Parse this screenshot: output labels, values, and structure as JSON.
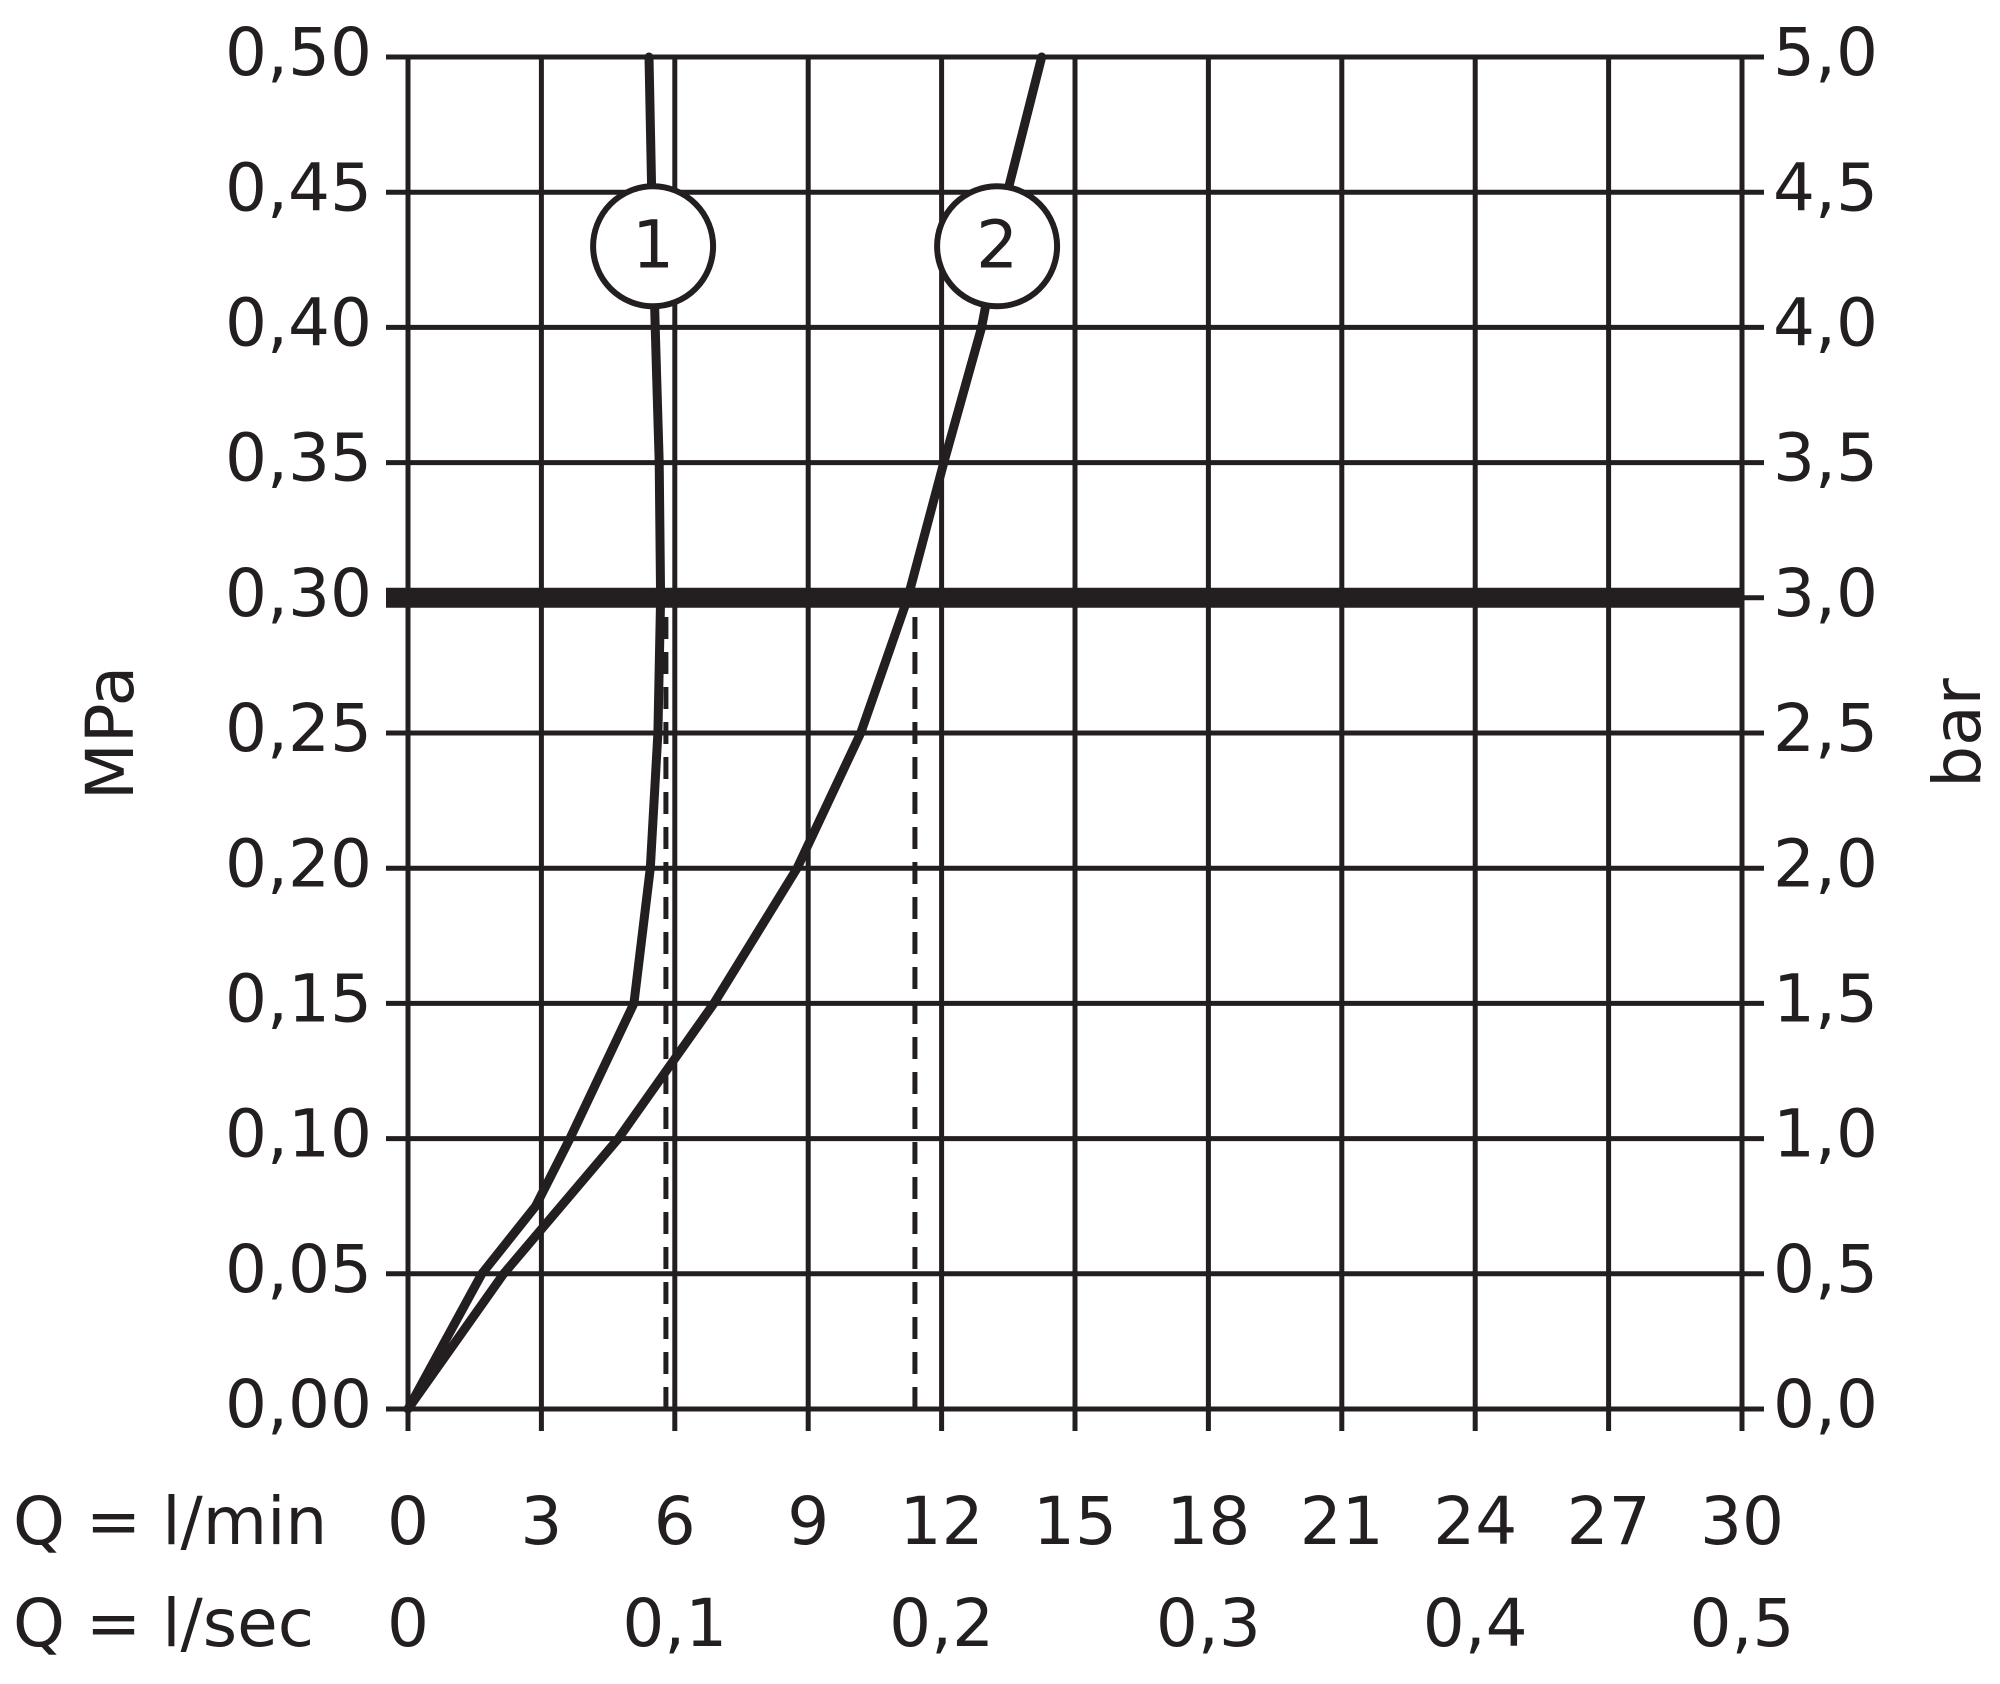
{
  "chart_data": {
    "type": "line",
    "x_label": "Q = l/min",
    "x2_label": "Q = l/sec",
    "y_label": "MPa",
    "y2_label": "bar",
    "xlim": [
      0,
      30
    ],
    "xticks": [
      0,
      3,
      6,
      9,
      12,
      15,
      18,
      21,
      24,
      27,
      30
    ],
    "x2lim": [
      0,
      0.5
    ],
    "x2ticks": [
      0,
      {
        "value": 0.1,
        "label": "0,1"
      },
      {
        "value": 0.2,
        "label": "0,2"
      },
      {
        "value": 0.3,
        "label": "0,3"
      },
      {
        "value": 0.4,
        "label": "0,4"
      },
      {
        "value": 0.5,
        "label": "0,5"
      }
    ],
    "ylim": [
      0,
      0.5
    ],
    "yticks": [
      {
        "value": 0,
        "label": "0,00"
      },
      {
        "value": 0.05,
        "label": "0,05"
      },
      {
        "value": 0.1,
        "label": "0,10"
      },
      {
        "value": 0.15,
        "label": "0,15"
      },
      {
        "value": 0.2,
        "label": "0,20"
      },
      {
        "value": 0.25,
        "label": "0,25"
      },
      {
        "value": 0.3,
        "label": "0,30"
      },
      {
        "value": 0.35,
        "label": "0,35"
      },
      {
        "value": 0.4,
        "label": "0,40"
      },
      {
        "value": 0.45,
        "label": "0,45"
      },
      {
        "value": 0.5,
        "label": "0,50"
      }
    ],
    "y2lim": [
      0,
      5
    ],
    "y2ticks": [
      {
        "value": 0,
        "label": "0,0"
      },
      {
        "value": 0.5,
        "label": "0,5"
      },
      {
        "value": 1,
        "label": "1,0"
      },
      {
        "value": 1.5,
        "label": "1,5"
      },
      {
        "value": 2,
        "label": "2,0"
      },
      {
        "value": 2.5,
        "label": "2,5"
      },
      {
        "value": 3,
        "label": "3,0"
      },
      {
        "value": 3.5,
        "label": "3,5"
      },
      {
        "value": 4,
        "label": "4,0"
      },
      {
        "value": 4.5,
        "label": "4,5"
      },
      {
        "value": 5,
        "label": "5,0"
      }
    ],
    "grid": true,
    "hline": 0.3,
    "drop_lines": [
      {
        "x": 5.8,
        "y": 0.3
      },
      {
        "x": 11.4,
        "y": 0.3
      }
    ],
    "series": [
      {
        "name": "1",
        "color": "#231f20",
        "x": [
          0,
          1.66,
          2.87,
          3.64,
          5.08,
          5.45,
          5.62,
          5.68,
          5.65,
          5.56,
          5.48,
          5.42
        ],
        "values": [
          0,
          0.05,
          0.075,
          0.1,
          0.15,
          0.2,
          0.25,
          0.3,
          0.35,
          0.4,
          0.45,
          0.5
        ]
      },
      {
        "name": "2",
        "color": "#231f20",
        "x": [
          0,
          2.15,
          4.73,
          6.88,
          8.75,
          10.18,
          11.24,
          12.05,
          12.9,
          13.48,
          14.25
        ],
        "values": [
          0,
          0.05,
          0.1,
          0.15,
          0.2,
          0.25,
          0.3,
          0.35,
          0.4,
          0.45,
          0.5
        ]
      }
    ]
  }
}
